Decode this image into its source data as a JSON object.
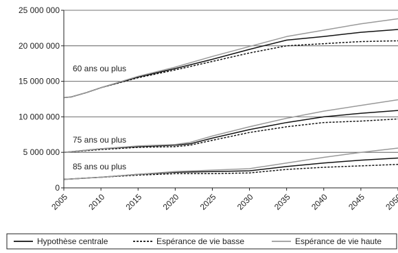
{
  "chart_data": {
    "type": "line",
    "title": "",
    "xlabel": "",
    "ylabel": "",
    "xlim": [
      2005,
      2050
    ],
    "ylim": [
      0,
      25000000
    ],
    "x_ticks": [
      "2005",
      "2010",
      "2015",
      "2020",
      "2025",
      "2030",
      "2035",
      "2040",
      "2045",
      "2050"
    ],
    "y_ticks": [
      "0",
      "5 000 000",
      "10 000 000",
      "15 000 000",
      "20 000 000",
      "25 000 000"
    ],
    "grid": "horizontal",
    "legend_position": "bottom",
    "annotations": [
      {
        "text": "60 ans ou plus",
        "x": 2006,
        "y": 16300000
      },
      {
        "text": "75 ans ou plus",
        "x": 2006,
        "y": 6200000
      },
      {
        "text": "85 ans ou plus",
        "x": 2006,
        "y": 2300000
      }
    ],
    "series": [
      {
        "name": "Hypothèse centrale",
        "style": "solid",
        "color": "#111111",
        "group": "60 ans ou plus",
        "points": [
          [
            2005,
            12700000
          ],
          [
            2006,
            12800000
          ],
          [
            2008,
            13400000
          ],
          [
            2010,
            14100000
          ],
          [
            2015,
            15600000
          ],
          [
            2020,
            16800000
          ],
          [
            2025,
            18100000
          ],
          [
            2030,
            19500000
          ],
          [
            2035,
            20800000
          ],
          [
            2040,
            21300000
          ],
          [
            2045,
            21900000
          ],
          [
            2050,
            22300000
          ]
        ]
      },
      {
        "name": "Espérance de vie basse",
        "style": "dashed",
        "color": "#111111",
        "group": "60 ans ou plus",
        "points": [
          [
            2005,
            12700000
          ],
          [
            2006,
            12800000
          ],
          [
            2008,
            13400000
          ],
          [
            2010,
            14100000
          ],
          [
            2015,
            15500000
          ],
          [
            2020,
            16600000
          ],
          [
            2025,
            17800000
          ],
          [
            2030,
            19000000
          ],
          [
            2035,
            20000000
          ],
          [
            2040,
            20300000
          ],
          [
            2045,
            20600000
          ],
          [
            2050,
            20700000
          ]
        ]
      },
      {
        "name": "Espérance de vie haute",
        "style": "solid",
        "color": "#999999",
        "group": "60 ans ou plus",
        "points": [
          [
            2005,
            12700000
          ],
          [
            2006,
            12800000
          ],
          [
            2008,
            13400000
          ],
          [
            2010,
            14100000
          ],
          [
            2015,
            15700000
          ],
          [
            2020,
            17000000
          ],
          [
            2025,
            18500000
          ],
          [
            2030,
            19900000
          ],
          [
            2035,
            21300000
          ],
          [
            2040,
            22200000
          ],
          [
            2045,
            23100000
          ],
          [
            2050,
            23800000
          ]
        ]
      },
      {
        "name": "Hypothèse centrale",
        "style": "solid",
        "color": "#111111",
        "group": "75 ans ou plus",
        "points": [
          [
            2005,
            5000000
          ],
          [
            2010,
            5500000
          ],
          [
            2015,
            5800000
          ],
          [
            2020,
            6000000
          ],
          [
            2022,
            6200000
          ],
          [
            2025,
            7000000
          ],
          [
            2030,
            8200000
          ],
          [
            2035,
            9200000
          ],
          [
            2040,
            10000000
          ],
          [
            2045,
            10500000
          ],
          [
            2050,
            10900000
          ]
        ]
      },
      {
        "name": "Espérance de vie basse",
        "style": "dashed",
        "color": "#111111",
        "group": "75 ans ou plus",
        "points": [
          [
            2005,
            5000000
          ],
          [
            2010,
            5400000
          ],
          [
            2015,
            5700000
          ],
          [
            2020,
            5800000
          ],
          [
            2022,
            6000000
          ],
          [
            2025,
            6700000
          ],
          [
            2030,
            7800000
          ],
          [
            2035,
            8600000
          ],
          [
            2040,
            9200000
          ],
          [
            2045,
            9400000
          ],
          [
            2050,
            9700000
          ]
        ]
      },
      {
        "name": "Espérance de vie haute",
        "style": "solid",
        "color": "#999999",
        "group": "75 ans ou plus",
        "points": [
          [
            2005,
            5000000
          ],
          [
            2010,
            5500000
          ],
          [
            2015,
            5900000
          ],
          [
            2020,
            6100000
          ],
          [
            2022,
            6400000
          ],
          [
            2025,
            7300000
          ],
          [
            2030,
            8600000
          ],
          [
            2035,
            9800000
          ],
          [
            2040,
            10800000
          ],
          [
            2045,
            11600000
          ],
          [
            2050,
            12400000
          ]
        ]
      },
      {
        "name": "Hypothèse centrale",
        "style": "solid",
        "color": "#111111",
        "group": "85 ans ou plus",
        "points": [
          [
            2005,
            1200000
          ],
          [
            2010,
            1500000
          ],
          [
            2015,
            1900000
          ],
          [
            2020,
            2200000
          ],
          [
            2025,
            2300000
          ],
          [
            2030,
            2400000
          ],
          [
            2035,
            3000000
          ],
          [
            2040,
            3500000
          ],
          [
            2045,
            3900000
          ],
          [
            2050,
            4200000
          ]
        ]
      },
      {
        "name": "Espérance de vie basse",
        "style": "dashed",
        "color": "#111111",
        "group": "85 ans ou plus",
        "points": [
          [
            2005,
            1200000
          ],
          [
            2010,
            1500000
          ],
          [
            2015,
            1800000
          ],
          [
            2020,
            2000000
          ],
          [
            2025,
            2000000
          ],
          [
            2030,
            2100000
          ],
          [
            2035,
            2600000
          ],
          [
            2040,
            2900000
          ],
          [
            2045,
            3100000
          ],
          [
            2050,
            3300000
          ]
        ]
      },
      {
        "name": "Espérance de vie haute",
        "style": "solid",
        "color": "#999999",
        "group": "85 ans ou plus",
        "points": [
          [
            2005,
            1200000
          ],
          [
            2010,
            1500000
          ],
          [
            2015,
            1900000
          ],
          [
            2020,
            2300000
          ],
          [
            2025,
            2500000
          ],
          [
            2030,
            2700000
          ],
          [
            2035,
            3500000
          ],
          [
            2040,
            4300000
          ],
          [
            2045,
            5000000
          ],
          [
            2050,
            5600000
          ]
        ]
      }
    ],
    "legend": [
      {
        "label": "Hypothèse centrale",
        "style": "solid",
        "color": "#111111"
      },
      {
        "label": "Espérance de vie basse",
        "style": "dashed",
        "color": "#111111"
      },
      {
        "label": "Espérance de vie haute",
        "style": "solid",
        "color": "#999999"
      }
    ]
  }
}
